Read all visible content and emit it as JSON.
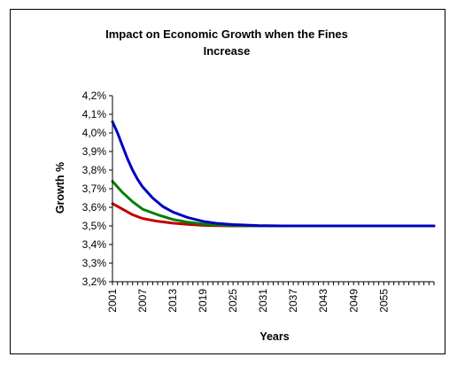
{
  "chart_data": {
    "type": "line",
    "title_lines": [
      "Impact on Economic Growth when the Fines",
      "Increase"
    ],
    "xlabel": "Years",
    "ylabel": "Growth %",
    "x_start": 2001,
    "x_end": 2065,
    "x_tick_labels": [
      "2001",
      "2007",
      "2013",
      "2019",
      "2025",
      "2031",
      "2037",
      "2043",
      "2049",
      "2055"
    ],
    "y_tick_labels": [
      "4,2%",
      "4,1%",
      "4,0%",
      "3,9%",
      "3,8%",
      "3,7%",
      "3,6%",
      "3,5%",
      "3,4%",
      "3,3%",
      "3,2%"
    ],
    "ylim": [
      3.2,
      4.2
    ],
    "grid": false,
    "legend": "none",
    "series": [
      {
        "color": "#c00000",
        "x": [
          2001,
          2003,
          2005,
          2007,
          2010,
          2013,
          2016,
          2019,
          2022,
          2025,
          2030,
          2065
        ],
        "y": [
          3.62,
          3.59,
          3.56,
          3.54,
          3.525,
          3.515,
          3.508,
          3.503,
          3.501,
          3.5,
          3.5,
          3.5
        ]
      },
      {
        "color": "#008000",
        "x": [
          2001,
          2003,
          2005,
          2007,
          2010,
          2013,
          2016,
          2019,
          2022,
          2025,
          2030,
          2065
        ],
        "y": [
          3.74,
          3.68,
          3.63,
          3.59,
          3.56,
          3.535,
          3.52,
          3.51,
          3.505,
          3.502,
          3.5,
          3.5
        ]
      },
      {
        "color": "#0000c0",
        "x": [
          2001,
          2002,
          2003,
          2004,
          2005,
          2006,
          2007,
          2009,
          2011,
          2013,
          2016,
          2019,
          2022,
          2025,
          2030,
          2035,
          2065
        ],
        "y": [
          4.06,
          4.0,
          3.93,
          3.86,
          3.8,
          3.75,
          3.71,
          3.65,
          3.605,
          3.575,
          3.545,
          3.525,
          3.513,
          3.507,
          3.502,
          3.5,
          3.5
        ]
      }
    ]
  }
}
